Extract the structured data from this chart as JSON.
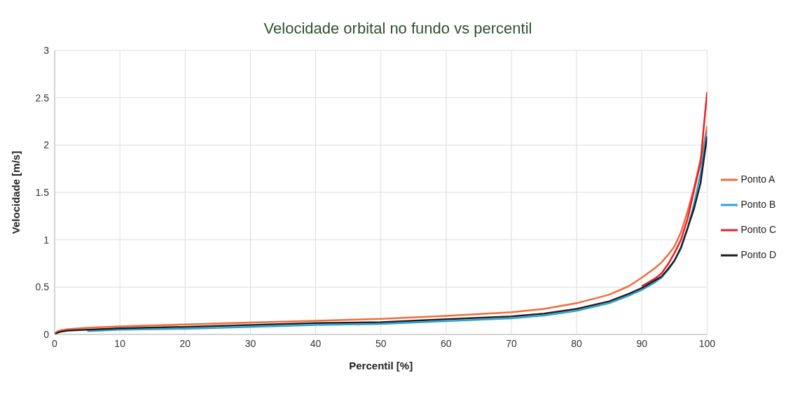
{
  "chart_data": {
    "type": "line",
    "title": "Velocidade orbital no fundo vs percentil",
    "xlabel": "Percentil [%]",
    "ylabel": "Velocidade  [m/s]",
    "x": [
      0,
      0.5,
      1,
      2,
      5,
      10,
      20,
      30,
      40,
      50,
      60,
      70,
      75,
      80,
      85,
      88,
      90,
      92,
      93,
      94,
      95,
      96,
      97,
      98,
      99,
      99.5,
      100
    ],
    "series": [
      {
        "name": "Ponto A",
        "color": "#f26b3a",
        "values": [
          0.01,
          0.035,
          0.045,
          0.055,
          0.07,
          0.085,
          0.105,
          0.125,
          0.145,
          0.165,
          0.195,
          0.235,
          0.27,
          0.33,
          0.42,
          0.51,
          0.6,
          0.7,
          0.76,
          0.84,
          0.93,
          1.08,
          1.3,
          1.55,
          1.85,
          2.0,
          2.2
        ]
      },
      {
        "name": "Ponto B",
        "color": "#2ea3d6",
        "values": [
          null,
          null,
          null,
          null,
          0.035,
          0.05,
          0.06,
          0.08,
          0.1,
          0.11,
          0.14,
          0.17,
          0.2,
          0.25,
          0.33,
          0.41,
          0.47,
          0.55,
          0.6,
          0.68,
          0.78,
          0.91,
          1.12,
          1.38,
          1.7,
          1.95,
          2.15
        ]
      },
      {
        "name": "Ponto C",
        "color": "#e8202a",
        "values": [
          null,
          null,
          null,
          null,
          null,
          null,
          null,
          null,
          null,
          null,
          null,
          null,
          null,
          null,
          null,
          null,
          0.51,
          0.59,
          0.645,
          0.74,
          0.86,
          1.0,
          1.22,
          1.52,
          1.82,
          2.2,
          2.56
        ]
      },
      {
        "name": "Ponto D",
        "color": "#1f1f1f",
        "values": [
          0,
          0.02,
          0.03,
          0.04,
          0.05,
          0.065,
          0.08,
          0.1,
          0.12,
          0.13,
          0.16,
          0.19,
          0.22,
          0.27,
          0.35,
          0.43,
          0.49,
          0.57,
          0.61,
          0.69,
          0.78,
          0.92,
          1.12,
          1.33,
          1.6,
          1.85,
          2.09
        ]
      }
    ],
    "xlim": [
      0,
      100
    ],
    "xticks": [
      0,
      10,
      20,
      30,
      40,
      50,
      60,
      70,
      80,
      90,
      100
    ],
    "ylim": [
      0,
      3
    ],
    "yticks": [
      0,
      0.5,
      1,
      1.5,
      2,
      2.5,
      3
    ],
    "grid": true,
    "legend": "right",
    "marker": "none",
    "line_style": "solid"
  }
}
